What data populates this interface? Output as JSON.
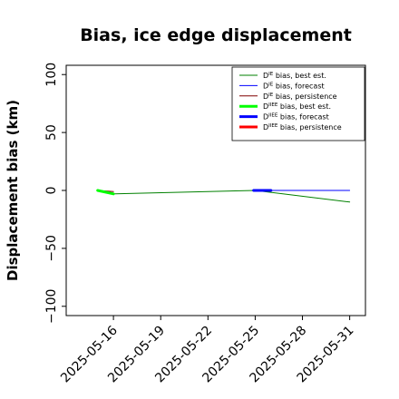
{
  "chart_data": {
    "type": "line",
    "title": "Bias, ice edge displacement",
    "xlabel": "",
    "ylabel": "Displacement bias (km)",
    "xlim": [
      "2025-05-13",
      "2025-06-01"
    ],
    "ylim": [
      -108,
      108
    ],
    "yticks": [
      -100,
      -50,
      0,
      50,
      100
    ],
    "ytick_labels": [
      "−100",
      "−50",
      "0",
      "50",
      "100"
    ],
    "xticks": [
      "2025-05-16",
      "2025-05-19",
      "2025-05-22",
      "2025-05-25",
      "2025-05-28",
      "2025-05-31"
    ],
    "xtick_labels": [
      "2025-05-16",
      "2025-05-19",
      "2025-05-22",
      "2025-05-25",
      "2025-05-28",
      "2025-05-31"
    ],
    "highlight_tick_color": "#1e7b1e",
    "highlight_tick": "2025-05-22",
    "grid": false,
    "legend_position": "top-right",
    "legend_entries": [
      {
        "sup": "IE",
        "label": "bias, best est."
      },
      {
        "sup": "IE",
        "label": "bias, forecast"
      },
      {
        "sup": "IE",
        "label": "bias, persistence"
      },
      {
        "sup": "IIEE",
        "label": "bias, best est."
      },
      {
        "sup": "IIEE",
        "label": "bias, forecast"
      },
      {
        "sup": "IIEE",
        "label": "bias, persistence"
      }
    ],
    "series": [
      {
        "name": "D^IE bias, best est.",
        "color": "#008000",
        "width": 1,
        "x": [
          "2025-05-15",
          "2025-05-16",
          "2025-05-25",
          "2025-05-31"
        ],
        "y": [
          0,
          -3,
          0,
          -10
        ]
      },
      {
        "name": "D^IE bias, forecast",
        "color": "#0000ff",
        "width": 1,
        "x": [
          "2025-05-25",
          "2025-05-31"
        ],
        "y": [
          0,
          0
        ]
      },
      {
        "name": "D^IE bias, persistence",
        "color": "#800000",
        "width": 1,
        "x": [
          "2025-05-15",
          "2025-05-16"
        ],
        "y": [
          0,
          -1
        ]
      },
      {
        "name": "D^IIEE bias, best est.",
        "color": "#00ff00",
        "width": 3,
        "x": [
          "2025-05-15",
          "2025-05-16"
        ],
        "y": [
          0,
          -3
        ]
      },
      {
        "name": "D^IIEE bias, forecast",
        "color": "#0000ff",
        "width": 3,
        "x": [
          "2025-05-24.9",
          "2025-05-26.0"
        ],
        "y": [
          0,
          0
        ]
      },
      {
        "name": "D^IIEE bias, persistence",
        "color": "#ff0000",
        "width": 3,
        "x": [],
        "y": []
      }
    ]
  }
}
